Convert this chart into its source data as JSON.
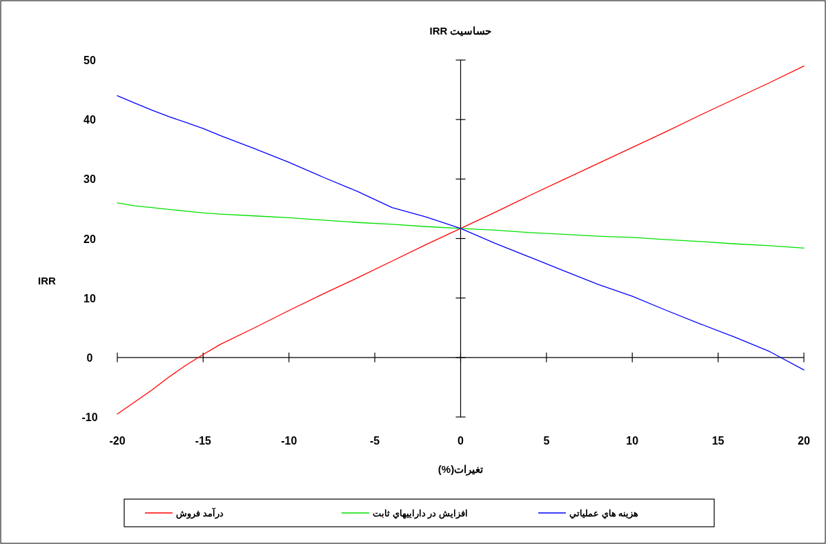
{
  "chart_data": {
    "type": "line",
    "title": "حساسیت IRR",
    "xlabel": "تغیرات(%)",
    "ylabel": "IRR",
    "x": [
      -20,
      -19,
      -18,
      -17,
      -16,
      -15,
      -14,
      -12,
      -10,
      -8,
      -6,
      -4,
      -2,
      0,
      2,
      4,
      6,
      8,
      10,
      12,
      14,
      16,
      18,
      20
    ],
    "series": [
      {
        "name": "درآمد فروش",
        "color": "#ff0000",
        "values": [
          -9.5,
          -7.5,
          -5.5,
          -3.3,
          -1.3,
          0.5,
          2.2,
          5,
          7.9,
          10.7,
          13.4,
          16.2,
          19,
          21.7,
          24.4,
          27.2,
          29.9,
          32.6,
          35.3,
          38,
          40.8,
          43.5,
          46.2,
          49
        ]
      },
      {
        "name": "افزایش در داراییهاي ثابت",
        "color": "#00e000",
        "values": [
          26,
          25.5,
          25.2,
          24.9,
          24.6,
          24.3,
          24.1,
          23.8,
          23.5,
          23.1,
          22.7,
          22.4,
          22,
          21.7,
          21.4,
          21,
          20.7,
          20.4,
          20.2,
          19.8,
          19.5,
          19.1,
          18.8,
          18.4
        ]
      },
      {
        "name": "هزینه هاي عملیاتي",
        "color": "#0000ff",
        "values": [
          44,
          42.8,
          41.6,
          40.5,
          39.5,
          38.5,
          37.3,
          35.1,
          32.8,
          30.3,
          27.9,
          25.2,
          23.6,
          21.7,
          19.2,
          16.9,
          14.6,
          12.3,
          10.3,
          7.9,
          5.6,
          3.4,
          1,
          -2.1
        ]
      }
    ],
    "xlim": [
      -20,
      20
    ],
    "ylim": [
      -10,
      50
    ],
    "xticks": [
      -20,
      -15,
      -10,
      -5,
      0,
      5,
      10,
      15,
      20
    ],
    "yticks": [
      -10,
      0,
      10,
      20,
      30,
      40,
      50
    ],
    "legend": "bottom"
  }
}
